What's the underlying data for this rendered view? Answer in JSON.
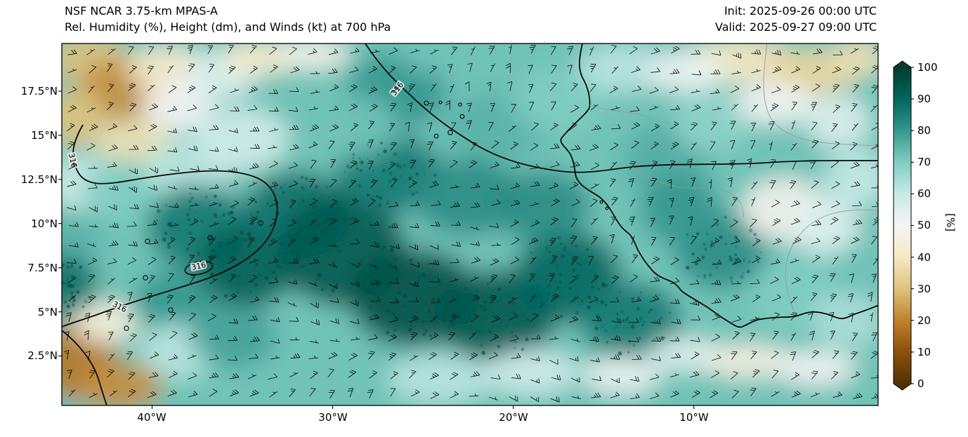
{
  "header": {
    "title_line1": "NSF NCAR 3.75-km MPAS-A",
    "title_line2": "Rel. Humidity (%), Height (dm), and Winds (kt) at 700 hPa",
    "init_label": "Init: 2025-09-26 00:00 UTC",
    "valid_label": "Valid: 2025-09-27 09:00 UTC"
  },
  "chart_data": {
    "type": "heatmap",
    "model": "NSF NCAR 3.75-km MPAS-A",
    "title": "Rel. Humidity (%), Height (dm), and Winds (kt) at 700 hPa",
    "level_hPa": 700,
    "init_time": "2025-09-26 00:00 UTC",
    "valid_time": "2025-09-27 09:00 UTC",
    "x_axis": {
      "tick_labels": [
        "40°W",
        "30°W",
        "20°W",
        "10°W"
      ],
      "tick_lons": [
        -40,
        -30,
        -20,
        -10
      ],
      "range_lon": [
        -45,
        0.2
      ]
    },
    "y_axis": {
      "tick_labels": [
        "2.5°N",
        "5°N",
        "7.5°N",
        "10°N",
        "12.5°N",
        "15°N",
        "17.5°N"
      ],
      "tick_lats": [
        2.5,
        5,
        7.5,
        10,
        12.5,
        15,
        17.5
      ],
      "range_lat": [
        -0.3,
        20.2
      ]
    },
    "colorbar": {
      "label": "[%]",
      "ticks": [
        0,
        10,
        20,
        30,
        40,
        50,
        60,
        70,
        80,
        90,
        100
      ],
      "range": [
        0,
        100
      ]
    },
    "colormap": [
      {
        "v": 0,
        "hex": "#543005"
      },
      {
        "v": 10,
        "hex": "#8c510a"
      },
      {
        "v": 20,
        "hex": "#bf812d"
      },
      {
        "v": 30,
        "hex": "#dfc27d"
      },
      {
        "v": 40,
        "hex": "#f6e8c3"
      },
      {
        "v": 50,
        "hex": "#f5f5f5"
      },
      {
        "v": 60,
        "hex": "#c7eae5"
      },
      {
        "v": 70,
        "hex": "#80cdc1"
      },
      {
        "v": 80,
        "hex": "#35978f"
      },
      {
        "v": 90,
        "hex": "#01665e"
      },
      {
        "v": 100,
        "hex": "#003c30"
      }
    ],
    "height_contour_label": "316",
    "height_contours_dm": [
      316
    ],
    "base_value": 72,
    "humidity_blobs": [
      [
        -43.5,
        19.3,
        2.2,
        1.4,
        30,
        0
      ],
      [
        -41.5,
        17.6,
        2.6,
        1.8,
        22,
        0
      ],
      [
        -44.3,
        16.0,
        1.8,
        1.6,
        30,
        0
      ],
      [
        -39.2,
        18.8,
        2.2,
        1.3,
        42,
        0
      ],
      [
        -38.6,
        16.6,
        2.0,
        1.4,
        50,
        0
      ],
      [
        -41.0,
        14.6,
        2.2,
        1.3,
        38,
        0
      ],
      [
        -36.2,
        18.4,
        2.0,
        1.4,
        55,
        0
      ],
      [
        -34.0,
        19.4,
        2.2,
        1.0,
        42,
        0
      ],
      [
        -31.0,
        19.6,
        2.0,
        0.9,
        48,
        0
      ],
      [
        -43.8,
        12.2,
        2.0,
        1.6,
        58,
        0
      ],
      [
        -44.6,
        9.0,
        1.8,
        1.8,
        75,
        0
      ],
      [
        -44.8,
        6.5,
        1.8,
        1.8,
        88,
        1
      ],
      [
        -41.5,
        11.8,
        2.4,
        1.8,
        70,
        0
      ],
      [
        -38.0,
        13.0,
        2.4,
        1.8,
        62,
        0
      ],
      [
        -35.0,
        14.8,
        2.6,
        1.8,
        58,
        0
      ],
      [
        -37.5,
        9.8,
        2.8,
        2.4,
        86,
        1
      ],
      [
        -34.8,
        7.6,
        2.8,
        2.4,
        92,
        1
      ],
      [
        -38.8,
        5.6,
        2.2,
        1.8,
        80,
        0
      ],
      [
        -32.0,
        10.5,
        3.0,
        2.5,
        88,
        1
      ],
      [
        -44.2,
        2.2,
        2.2,
        2.2,
        18,
        0
      ],
      [
        -41.8,
        0.8,
        2.4,
        1.4,
        22,
        0
      ],
      [
        -42.6,
        4.4,
        1.8,
        1.2,
        45,
        0
      ],
      [
        -38.5,
        2.8,
        2.2,
        1.6,
        62,
        0
      ],
      [
        -35.5,
        3.6,
        2.4,
        1.8,
        78,
        0
      ],
      [
        -29.5,
        8.5,
        3.6,
        3.2,
        93,
        1
      ],
      [
        -25.5,
        5.8,
        3.6,
        2.8,
        95,
        1
      ],
      [
        -21.0,
        4.8,
        3.4,
        2.6,
        93,
        1
      ],
      [
        -26.8,
        12.8,
        3.0,
        2.2,
        86,
        1
      ],
      [
        -22.5,
        11.5,
        3.0,
        2.2,
        82,
        0
      ],
      [
        -17.0,
        7.0,
        3.0,
        2.6,
        90,
        1
      ],
      [
        -13.5,
        4.5,
        2.8,
        2.2,
        86,
        1
      ],
      [
        -18.5,
        11.0,
        2.8,
        2.0,
        82,
        0
      ],
      [
        -26.5,
        17.5,
        2.8,
        2.2,
        80,
        0
      ],
      [
        -24.0,
        19.6,
        2.4,
        1.2,
        72,
        0
      ],
      [
        -28.8,
        15.5,
        2.4,
        1.8,
        72,
        0
      ],
      [
        -21.0,
        15.5,
        2.8,
        2.0,
        75,
        0
      ],
      [
        -17.5,
        17.0,
        2.6,
        1.8,
        70,
        0
      ],
      [
        -14.0,
        18.8,
        2.4,
        1.4,
        62,
        0
      ],
      [
        -24.0,
        1.2,
        3.0,
        1.4,
        62,
        0
      ],
      [
        -19.0,
        1.6,
        2.6,
        1.3,
        58,
        0
      ],
      [
        -14.0,
        1.4,
        2.2,
        1.1,
        52,
        0
      ],
      [
        -10.5,
        2.6,
        2.0,
        1.0,
        55,
        0
      ],
      [
        -11.5,
        13.5,
        2.4,
        2.2,
        76,
        0
      ],
      [
        -9.0,
        15.8,
        2.2,
        1.8,
        68,
        0
      ],
      [
        -8.5,
        8.5,
        2.6,
        2.2,
        82,
        1
      ],
      [
        -10.8,
        10.8,
        2.2,
        2.0,
        80,
        0
      ],
      [
        -5.0,
        10.8,
        2.4,
        1.8,
        48,
        0
      ],
      [
        -2.8,
        9.8,
        2.0,
        1.6,
        55,
        0
      ],
      [
        -4.5,
        6.0,
        2.4,
        2.0,
        70,
        0
      ],
      [
        -1.5,
        4.5,
        2.0,
        1.6,
        64,
        0
      ],
      [
        -1.0,
        12.5,
        1.8,
        1.6,
        60,
        0
      ],
      [
        -2.0,
        15.8,
        1.8,
        1.5,
        55,
        0
      ],
      [
        -7.5,
        19.2,
        3.0,
        1.3,
        40,
        0
      ],
      [
        -3.5,
        18.6,
        2.6,
        1.3,
        35,
        0
      ],
      [
        -0.8,
        19.4,
        1.6,
        1.0,
        38,
        0
      ],
      [
        -10.5,
        18.6,
        2.2,
        1.2,
        52,
        0
      ],
      [
        -5.5,
        16.8,
        2.2,
        1.2,
        50,
        0
      ],
      [
        -7.0,
        2.2,
        2.6,
        1.0,
        46,
        0
      ],
      [
        -3.2,
        1.8,
        2.2,
        1.0,
        50,
        0
      ]
    ],
    "wind_barbs": {
      "units": "kt",
      "prevailing_direction": "easterly",
      "speed_range_kt": [
        5,
        25
      ],
      "full_barb_kt": 10,
      "half_barb_kt": 5
    }
  }
}
